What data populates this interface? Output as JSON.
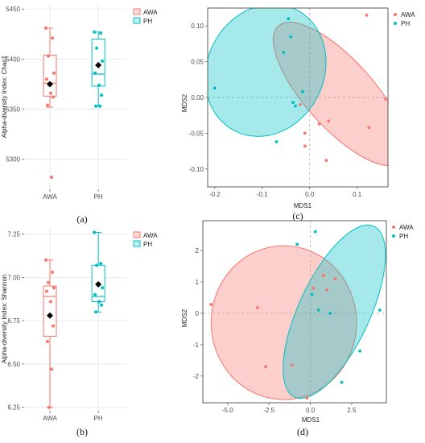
{
  "colors": {
    "AWA": "#F8766D",
    "PH": "#00BFC4",
    "AWA_fill": "#F8766D",
    "PH_fill": "#00BFC4",
    "grid": "#e6e6e6",
    "frame": "#333333",
    "mean_marker": "#000000"
  },
  "chart_data": [
    {
      "panel": "(a)",
      "type": "box",
      "title": "",
      "ylabel": "Alpha-diversity Index: Chao1",
      "xlabel": "",
      "categories": [
        "AWA",
        "PH"
      ],
      "ylim": [
        5270,
        5455
      ],
      "yticks": [
        "5300",
        "5350",
        "5400",
        "5450"
      ],
      "legend": [
        "AWA",
        "PH"
      ],
      "legend_position": "top-right",
      "series": [
        {
          "name": "AWA",
          "box": {
            "q1": 5363,
            "median": 5376,
            "q3": 5404,
            "whisker_low": 5352,
            "whisker_high": 5431
          },
          "mean": 5375,
          "points": [
            5431,
            5421,
            5403,
            5386,
            5380,
            5366,
            5362,
            5354,
            5282
          ]
        },
        {
          "name": "PH",
          "box": {
            "q1": 5373,
            "median": 5385,
            "q3": 5420,
            "whisker_low": 5353,
            "whisker_high": 5427
          },
          "mean": 5394,
          "points": [
            5427,
            5426,
            5411,
            5398,
            5386,
            5374,
            5364,
            5353,
            5353
          ]
        }
      ]
    },
    {
      "panel": "(b)",
      "type": "box",
      "title": "",
      "ylabel": "Alpha-diversity Index: Shannon",
      "xlabel": "",
      "categories": [
        "AWA",
        "PH"
      ],
      "ylim": [
        6.23,
        7.29
      ],
      "yticks": [
        "6.25",
        "6.50",
        "6.75",
        "7.00",
        "7.25"
      ],
      "legend": [
        "AWA",
        "PH"
      ],
      "legend_position": "top-right",
      "series": [
        {
          "name": "AWA",
          "box": {
            "q1": 6.66,
            "median": 6.89,
            "q3": 6.95,
            "whisker_low": 6.25,
            "whisker_high": 7.1
          },
          "mean": 6.78,
          "points": [
            7.1,
            7.03,
            6.97,
            6.94,
            6.92,
            6.86,
            6.72,
            6.63,
            6.47,
            6.25
          ]
        },
        {
          "name": "PH",
          "box": {
            "q1": 6.86,
            "median": 6.89,
            "q3": 7.07,
            "whisker_low": 6.8,
            "whisker_high": 7.26
          },
          "mean": 6.96,
          "points": [
            7.26,
            7.08,
            7.07,
            6.94,
            6.9,
            6.86,
            6.84,
            6.8
          ]
        }
      ]
    },
    {
      "panel": "(c)",
      "type": "scatter",
      "title": "",
      "xlabel": "MDS1",
      "ylabel": "MDS2",
      "xlim": [
        -0.215,
        0.165
      ],
      "ylim": [
        -0.125,
        0.125
      ],
      "xticks": [
        -0.2,
        -0.1,
        0.0,
        0.1
      ],
      "xtick_labels": [
        "-0.2",
        "-0.1",
        "0.0",
        "0.1"
      ],
      "yticks": [
        -0.1,
        -0.05,
        0.0,
        0.05,
        0.1
      ],
      "ytick_labels": [
        "-0.10",
        "-0.05",
        "0.00",
        "0.05",
        "0.10"
      ],
      "legend": [
        "AWA",
        "PH"
      ],
      "legend_position": "top-right",
      "series": [
        {
          "name": "AWA",
          "x": [
            0.12,
            0.16,
            0.125,
            0.04,
            0.02,
            0.035,
            -0.01,
            -0.01,
            -0.02
          ],
          "y": [
            0.115,
            -0.002,
            -0.042,
            -0.033,
            -0.037,
            -0.088,
            -0.05,
            -0.068,
            -0.01
          ],
          "ellipse": {
            "cx": 0.063,
            "cy": 0.005,
            "rx": 0.072,
            "ry": 0.128,
            "angle_deg": 42
          }
        },
        {
          "name": "PH",
          "x": [
            -0.2,
            -0.07,
            -0.055,
            -0.045,
            -0.04,
            -0.035,
            -0.015,
            -0.03
          ],
          "y": [
            0.013,
            -0.062,
            0.063,
            0.11,
            0.085,
            -0.007,
            0.008,
            -0.012
          ],
          "ellipse": {
            "cx": -0.093,
            "cy": 0.038,
            "rx": 0.123,
            "ry": 0.095,
            "angle_deg": -27
          }
        }
      ]
    },
    {
      "panel": "(d)",
      "type": "scatter",
      "title": "",
      "xlabel": "MDS1",
      "ylabel": "MDS2",
      "xlim": [
        -6.5,
        4.6
      ],
      "ylim": [
        -2.85,
        2.95
      ],
      "xticks": [
        -5,
        -2.5,
        0,
        2.5
      ],
      "xtick_labels": [
        "-5.0",
        "-2.5",
        "0.0",
        "2.5"
      ],
      "yticks": [
        -2,
        -1,
        0,
        1,
        2
      ],
      "ytick_labels": [
        "-2",
        "-1",
        "0",
        "1",
        "2"
      ],
      "legend": [
        "AWA",
        "PH"
      ],
      "legend_position": "top-right",
      "series": [
        {
          "name": "AWA",
          "x": [
            -6.0,
            -3.2,
            -2.7,
            -1.1,
            -0.2,
            0.2,
            0.8,
            1.0,
            1.5
          ],
          "y": [
            0.28,
            0.18,
            -1.7,
            -1.65,
            -2.7,
            0.8,
            1.2,
            0.75,
            1.1
          ],
          "ellipse": {
            "cx": -1.6,
            "cy": -0.3,
            "rx": 4.4,
            "ry": 2.45,
            "angle_deg": 0
          }
        },
        {
          "name": "PH",
          "x": [
            -0.8,
            0.3,
            0.5,
            1.2,
            1.9,
            3.0,
            4.2,
            0.1
          ],
          "y": [
            2.2,
            2.6,
            0.1,
            0.0,
            -2.2,
            -1.2,
            0.1,
            0.6
          ],
          "ellipse": {
            "cx": 1.45,
            "cy": 0.05,
            "rx": 2.15,
            "ry": 3.0,
            "angle_deg": -25
          }
        }
      ]
    }
  ]
}
